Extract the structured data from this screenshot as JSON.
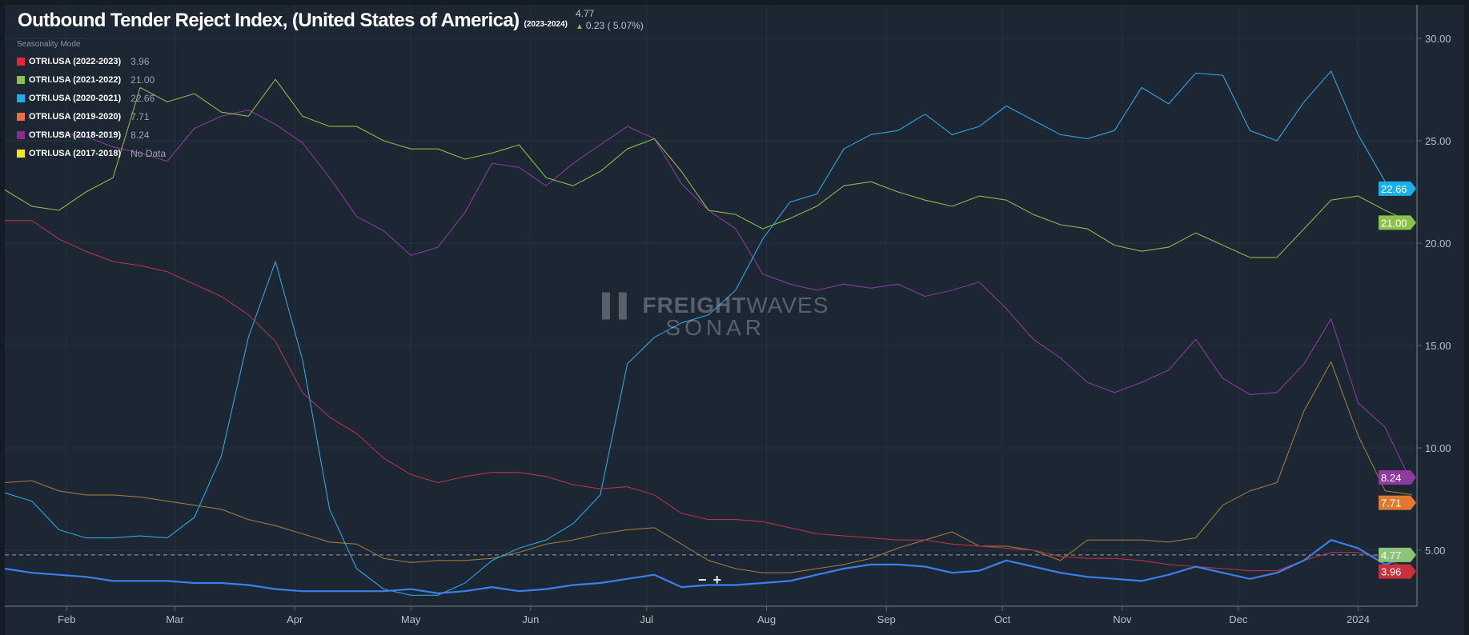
{
  "header": {
    "title": "Outbound Tender Reject Index, (United States of America)",
    "period": "(2023-2024)",
    "current_value": "4.77",
    "change": "0.23 ( 5.07%)",
    "change_direction": "up"
  },
  "legend": {
    "title": "Seasonality Mode",
    "items": [
      {
        "label": "OTRI.USA (2022-2023)",
        "value": "3.96",
        "color": "#e8233a"
      },
      {
        "label": "OTRI.USA (2021-2022)",
        "value": "21.00",
        "color": "#8bc34a"
      },
      {
        "label": "OTRI.USA (2020-2021)",
        "value": "22.66",
        "color": "#1ab0ec"
      },
      {
        "label": "OTRI.USA (2019-2020)",
        "value": "7.71",
        "color": "#f26b3a"
      },
      {
        "label": "OTRI.USA (2018-2019)",
        "value": "8.24",
        "color": "#8e2a8e"
      },
      {
        "label": "OTRI.USA (2017-2018)",
        "value": "No Data",
        "color": "#f5e61a"
      }
    ]
  },
  "watermark": {
    "brand": "FREIGHT",
    "brand2": "WAVES",
    "product": "SONAR"
  },
  "controls": {
    "zoom_out": "−",
    "zoom_in": "+"
  },
  "chart_data": {
    "type": "line",
    "title": "Outbound Tender Reject Index, (United States of America)",
    "x_start": "2023-01-16",
    "x_step_days": 7,
    "x_ticks": [
      {
        "label": "Feb",
        "date": "2023-02-01"
      },
      {
        "label": "Mar",
        "date": "2023-03-01"
      },
      {
        "label": "Apr",
        "date": "2023-04-01"
      },
      {
        "label": "May",
        "date": "2023-05-01"
      },
      {
        "label": "Jun",
        "date": "2023-06-01"
      },
      {
        "label": "Jul",
        "date": "2023-07-01"
      },
      {
        "label": "Aug",
        "date": "2023-08-01"
      },
      {
        "label": "Sep",
        "date": "2023-09-01"
      },
      {
        "label": "Oct",
        "date": "2023-10-01"
      },
      {
        "label": "Nov",
        "date": "2023-11-01"
      },
      {
        "label": "Dec",
        "date": "2023-12-01"
      },
      {
        "label": "2024",
        "date": "2024-01-01"
      }
    ],
    "y_ticks": [
      "30.00",
      "25.00",
      "20.00",
      "15.00",
      "10.00",
      "5.00"
    ],
    "ylim": [
      2.7,
      31.3
    ],
    "y_axis_side": "right",
    "grid": true,
    "reference_line": 4.77,
    "series": [
      {
        "name": "OTRI.USA (2023-2024)",
        "color": "#3d7fea",
        "last": "4.77",
        "tag_color": "#8cc47a",
        "width": 2.2,
        "values": [
          4.1,
          3.9,
          3.8,
          3.7,
          3.5,
          3.5,
          3.5,
          3.4,
          3.4,
          3.3,
          3.1,
          3.0,
          3.0,
          3.0,
          3.0,
          3.1,
          2.9,
          3.0,
          3.2,
          3.0,
          3.1,
          3.3,
          3.4,
          3.6,
          3.8,
          3.2,
          3.3,
          3.3,
          3.4,
          3.5,
          3.8,
          4.1,
          4.3,
          4.3,
          4.2,
          3.9,
          4.0,
          4.5,
          4.2,
          3.9,
          3.7,
          3.6,
          3.5,
          3.8,
          4.2,
          3.9,
          3.6,
          3.9,
          4.5,
          5.5,
          5.1,
          4.3,
          4.77
        ]
      },
      {
        "name": "OTRI.USA (2022-2023)",
        "color": "#b8304a",
        "last": "3.96",
        "tag_color": "#c8303c",
        "width": 1.1,
        "values": [
          21.1,
          21.1,
          20.2,
          19.6,
          19.1,
          18.9,
          18.6,
          18.0,
          17.4,
          16.5,
          15.2,
          12.7,
          11.5,
          10.7,
          9.5,
          8.7,
          8.3,
          8.6,
          8.8,
          8.8,
          8.6,
          8.2,
          8.0,
          8.1,
          7.7,
          6.8,
          6.5,
          6.5,
          6.4,
          6.1,
          5.8,
          5.7,
          5.6,
          5.5,
          5.5,
          5.3,
          5.2,
          5.1,
          5.0,
          4.7,
          4.6,
          4.6,
          4.5,
          4.3,
          4.2,
          4.1,
          4.0,
          4.0,
          4.5,
          4.9,
          4.9,
          4.6,
          3.96
        ]
      },
      {
        "name": "OTRI.USA (2021-2022)",
        "color": "#8db84a",
        "last": "21.00",
        "tag_color": "#8bc34a",
        "width": 1.1,
        "values": [
          22.6,
          21.8,
          21.6,
          22.5,
          23.2,
          27.6,
          26.9,
          27.3,
          26.4,
          26.2,
          28.0,
          26.2,
          25.7,
          25.7,
          25.0,
          24.6,
          24.6,
          24.1,
          24.4,
          24.8,
          23.2,
          22.8,
          23.5,
          24.6,
          25.1,
          23.5,
          21.6,
          21.4,
          20.7,
          21.2,
          21.8,
          22.8,
          23.0,
          22.5,
          22.1,
          21.8,
          22.3,
          22.1,
          21.4,
          20.9,
          20.7,
          19.9,
          19.6,
          19.8,
          20.5,
          19.9,
          19.3,
          19.3,
          20.7,
          22.1,
          22.3,
          21.6,
          21.0
        ]
      },
      {
        "name": "OTRI.USA (2020-2021)",
        "color": "#2aa6e4",
        "last": "22.66",
        "tag_color": "#1ab0ec",
        "width": 1.1,
        "values": [
          7.8,
          7.4,
          6.0,
          5.6,
          5.6,
          5.7,
          5.6,
          6.6,
          9.6,
          15.4,
          19.1,
          14.3,
          7.0,
          4.1,
          3.1,
          2.8,
          2.8,
          3.4,
          4.5,
          5.1,
          5.5,
          6.3,
          7.7,
          14.1,
          15.4,
          16.1,
          16.5,
          17.7,
          20.2,
          22.0,
          22.4,
          24.6,
          25.3,
          25.5,
          26.3,
          25.3,
          25.7,
          26.7,
          26.0,
          25.3,
          25.1,
          25.5,
          27.6,
          26.8,
          28.3,
          28.2,
          25.5,
          25.0,
          26.9,
          28.4,
          25.3,
          23.0,
          22.66
        ]
      },
      {
        "name": "OTRI.USA (2019-2020)",
        "color": "#9c7a3c",
        "last": "7.71",
        "tag_color": "#e07a30",
        "width": 1.1,
        "values": [
          8.3,
          8.4,
          7.9,
          7.7,
          7.7,
          7.6,
          7.4,
          7.2,
          7.0,
          6.5,
          6.2,
          5.8,
          5.4,
          5.3,
          4.6,
          4.4,
          4.5,
          4.5,
          4.6,
          4.9,
          5.3,
          5.5,
          5.8,
          6.0,
          6.1,
          5.3,
          4.5,
          4.1,
          3.9,
          3.9,
          4.1,
          4.3,
          4.6,
          5.1,
          5.5,
          5.9,
          5.2,
          5.2,
          5.0,
          4.5,
          5.5,
          5.5,
          5.5,
          5.4,
          5.6,
          7.2,
          7.9,
          8.3,
          11.8,
          14.2,
          10.6,
          7.9,
          7.71
        ]
      },
      {
        "name": "OTRI.USA (2018-2019)",
        "color": "#8a3a9c",
        "last": "8.24",
        "tag_color": "#8e3aa0",
        "width": 1.1,
        "values": [
          null,
          null,
          25.4,
          25.2,
          24.7,
          24.4,
          24.0,
          25.6,
          26.2,
          26.5,
          25.8,
          24.9,
          23.2,
          21.3,
          20.6,
          19.4,
          19.8,
          21.5,
          23.9,
          23.7,
          22.8,
          23.9,
          24.8,
          25.7,
          25.1,
          22.9,
          21.6,
          20.7,
          18.5,
          18.0,
          17.7,
          18.0,
          17.8,
          18.0,
          17.4,
          17.7,
          18.1,
          16.8,
          15.3,
          14.4,
          13.2,
          12.7,
          13.2,
          13.8,
          15.3,
          13.4,
          12.6,
          12.7,
          14.1,
          16.3,
          12.2,
          11.0,
          8.24
        ]
      }
    ]
  }
}
